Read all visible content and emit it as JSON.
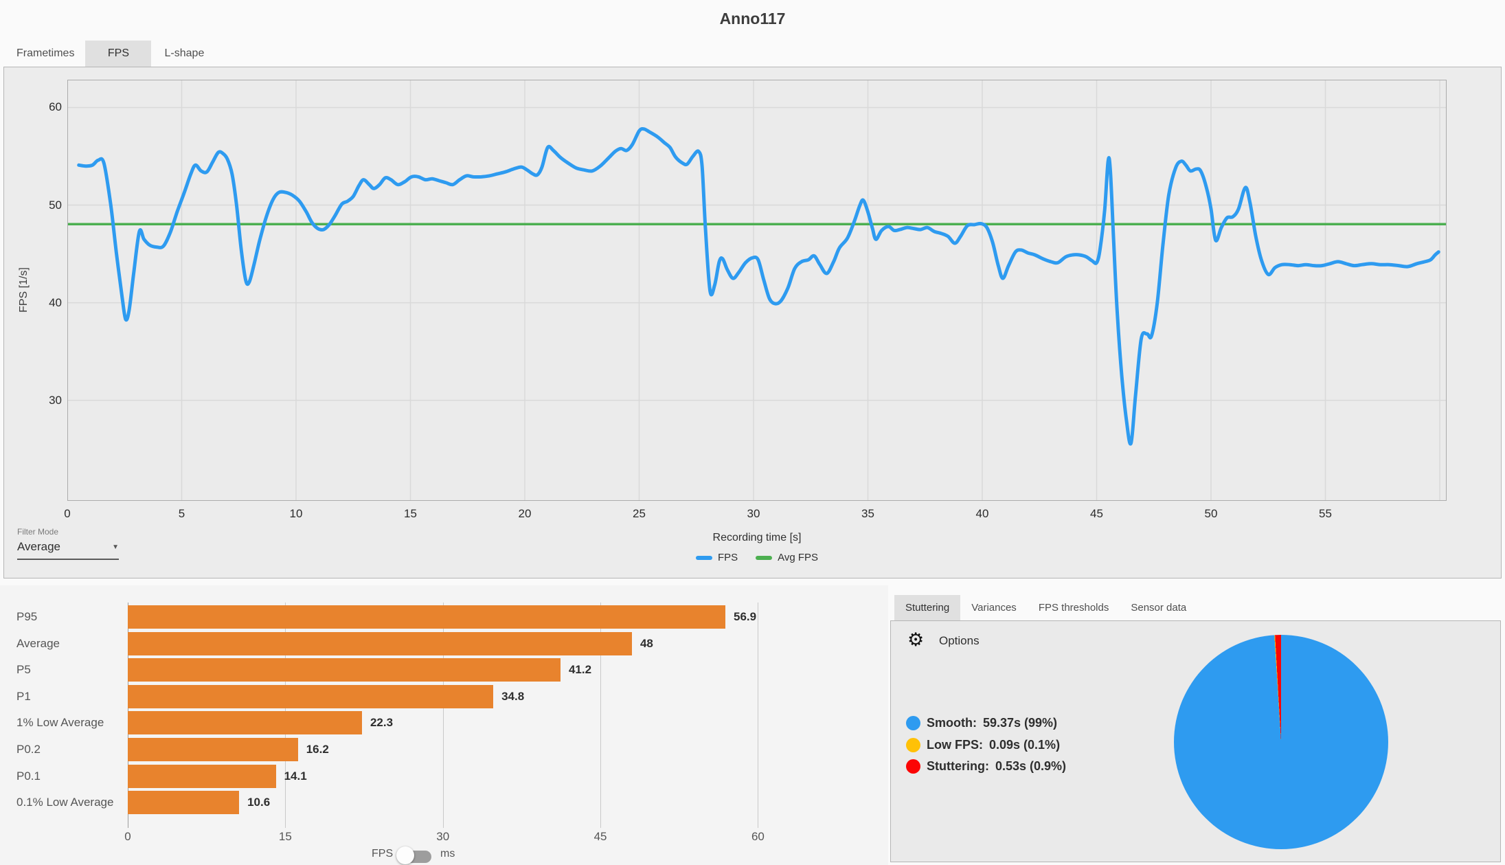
{
  "title": "Anno117",
  "main_tabs": [
    {
      "label": "Frametimes",
      "selected": false
    },
    {
      "label": "FPS",
      "selected": true
    },
    {
      "label": "L-shape",
      "selected": false
    }
  ],
  "filter": {
    "label": "Filter Mode",
    "value": "Average",
    "arrow_icon": "▼"
  },
  "colors": {
    "fps_blue": "#2E9BF0",
    "avg_green": "#4CAF50",
    "bar_orange": "#E8832D",
    "low_fps_yellow": "#FFC107",
    "stutter_red": "#FB0505",
    "tab_selected_bg": "#E0E0E0"
  },
  "chart_data": [
    {
      "type": "line",
      "title": "Anno117",
      "xlabel": "Recording time [s]",
      "ylabel": "FPS [1/s]",
      "xlim": [
        0,
        60.3
      ],
      "ylim": [
        19.7,
        62.85
      ],
      "x_ticks": [
        0,
        5,
        10,
        15,
        20,
        25,
        30,
        35,
        40,
        45,
        50,
        55
      ],
      "grid_x_extra": 60,
      "y_ticks": [
        60,
        50,
        40,
        30
      ],
      "grid": true,
      "legend_position": "bottom",
      "legend": [
        {
          "label": "FPS",
          "color": "#2E9BF0"
        },
        {
          "label": "Avg FPS",
          "color": "#4CAF50"
        }
      ],
      "avg_fps": 48.05,
      "series": [
        {
          "name": "FPS",
          "color": "#2E9BF0",
          "points": [
            [
              0.5,
              54.1
            ],
            [
              0.8,
              54.0
            ],
            [
              1.1,
              54.1
            ],
            [
              1.35,
              54.6
            ],
            [
              1.6,
              54.3
            ],
            [
              1.9,
              50.0
            ],
            [
              2.15,
              45.0
            ],
            [
              2.4,
              40.5
            ],
            [
              2.55,
              38.3
            ],
            [
              2.7,
              39.2
            ],
            [
              2.9,
              43.0
            ],
            [
              3.15,
              47.3
            ],
            [
              3.35,
              46.5
            ],
            [
              3.6,
              45.9
            ],
            [
              3.9,
              45.7
            ],
            [
              4.2,
              45.8
            ],
            [
              4.5,
              47.2
            ],
            [
              4.8,
              49.3
            ],
            [
              5.1,
              51.2
            ],
            [
              5.4,
              53.2
            ],
            [
              5.6,
              54.1
            ],
            [
              5.85,
              53.5
            ],
            [
              6.1,
              53.4
            ],
            [
              6.35,
              54.4
            ],
            [
              6.6,
              55.4
            ],
            [
              6.8,
              55.3
            ],
            [
              7.0,
              54.7
            ],
            [
              7.2,
              53.2
            ],
            [
              7.4,
              50.0
            ],
            [
              7.6,
              45.5
            ],
            [
              7.8,
              42.3
            ],
            [
              7.95,
              42.1
            ],
            [
              8.15,
              43.8
            ],
            [
              8.4,
              46.3
            ],
            [
              8.7,
              48.8
            ],
            [
              9.0,
              50.6
            ],
            [
              9.25,
              51.3
            ],
            [
              9.55,
              51.3
            ],
            [
              9.85,
              51.0
            ],
            [
              10.15,
              50.4
            ],
            [
              10.45,
              49.3
            ],
            [
              10.7,
              48.2
            ],
            [
              10.95,
              47.6
            ],
            [
              11.2,
              47.5
            ],
            [
              11.45,
              48.0
            ],
            [
              11.7,
              48.9
            ],
            [
              12.0,
              50.1
            ],
            [
              12.25,
              50.4
            ],
            [
              12.5,
              50.9
            ],
            [
              12.75,
              52.0
            ],
            [
              12.95,
              52.6
            ],
            [
              13.2,
              52.1
            ],
            [
              13.4,
              51.7
            ],
            [
              13.65,
              52.1
            ],
            [
              13.9,
              52.8
            ],
            [
              14.15,
              52.6
            ],
            [
              14.45,
              52.1
            ],
            [
              14.75,
              52.4
            ],
            [
              15.05,
              52.9
            ],
            [
              15.35,
              52.9
            ],
            [
              15.65,
              52.6
            ],
            [
              15.95,
              52.7
            ],
            [
              16.25,
              52.5
            ],
            [
              16.55,
              52.3
            ],
            [
              16.85,
              52.1
            ],
            [
              17.15,
              52.6
            ],
            [
              17.45,
              53.0
            ],
            [
              17.75,
              52.9
            ],
            [
              18.1,
              52.9
            ],
            [
              18.45,
              53.0
            ],
            [
              18.8,
              53.2
            ],
            [
              19.15,
              53.4
            ],
            [
              19.5,
              53.7
            ],
            [
              19.85,
              53.9
            ],
            [
              20.1,
              53.6
            ],
            [
              20.35,
              53.2
            ],
            [
              20.55,
              53.1
            ],
            [
              20.75,
              53.9
            ],
            [
              21.0,
              55.9
            ],
            [
              21.25,
              55.6
            ],
            [
              21.55,
              54.9
            ],
            [
              21.9,
              54.3
            ],
            [
              22.25,
              53.8
            ],
            [
              22.6,
              53.6
            ],
            [
              22.95,
              53.5
            ],
            [
              23.3,
              54.0
            ],
            [
              23.65,
              54.8
            ],
            [
              23.95,
              55.5
            ],
            [
              24.2,
              55.8
            ],
            [
              24.45,
              55.6
            ],
            [
              24.7,
              56.2
            ],
            [
              25.0,
              57.6
            ],
            [
              25.2,
              57.8
            ],
            [
              25.45,
              57.5
            ],
            [
              25.8,
              57.0
            ],
            [
              26.1,
              56.4
            ],
            [
              26.35,
              55.9
            ],
            [
              26.6,
              54.9
            ],
            [
              26.9,
              54.3
            ],
            [
              27.1,
              54.2
            ],
            [
              27.35,
              55.0
            ],
            [
              27.6,
              55.5
            ],
            [
              27.75,
              54.0
            ],
            [
              27.9,
              47.5
            ],
            [
              28.1,
              41.2
            ],
            [
              28.3,
              41.8
            ],
            [
              28.5,
              44.2
            ],
            [
              28.65,
              44.5
            ],
            [
              28.85,
              43.4
            ],
            [
              29.1,
              42.5
            ],
            [
              29.35,
              43.1
            ],
            [
              29.65,
              44.1
            ],
            [
              29.95,
              44.6
            ],
            [
              30.2,
              44.4
            ],
            [
              30.45,
              42.3
            ],
            [
              30.7,
              40.4
            ],
            [
              30.95,
              39.9
            ],
            [
              31.2,
              40.2
            ],
            [
              31.5,
              41.5
            ],
            [
              31.8,
              43.5
            ],
            [
              32.1,
              44.2
            ],
            [
              32.4,
              44.4
            ],
            [
              32.65,
              44.8
            ],
            [
              32.9,
              43.9
            ],
            [
              33.2,
              43.0
            ],
            [
              33.5,
              44.2
            ],
            [
              33.75,
              45.6
            ],
            [
              34.1,
              46.6
            ],
            [
              34.4,
              48.3
            ],
            [
              34.65,
              50.0
            ],
            [
              34.8,
              50.5
            ],
            [
              35.0,
              49.3
            ],
            [
              35.2,
              47.6
            ],
            [
              35.35,
              46.5
            ],
            [
              35.6,
              47.4
            ],
            [
              35.9,
              47.8
            ],
            [
              36.15,
              47.4
            ],
            [
              36.4,
              47.5
            ],
            [
              36.7,
              47.7
            ],
            [
              37.0,
              47.6
            ],
            [
              37.3,
              47.5
            ],
            [
              37.6,
              47.7
            ],
            [
              37.9,
              47.3
            ],
            [
              38.2,
              47.1
            ],
            [
              38.5,
              46.8
            ],
            [
              38.8,
              46.1
            ],
            [
              39.05,
              46.8
            ],
            [
              39.35,
              47.9
            ],
            [
              39.65,
              48.0
            ],
            [
              39.95,
              48.1
            ],
            [
              40.2,
              47.7
            ],
            [
              40.45,
              46.2
            ],
            [
              40.7,
              43.8
            ],
            [
              40.9,
              42.5
            ],
            [
              41.15,
              43.8
            ],
            [
              41.45,
              45.2
            ],
            [
              41.7,
              45.4
            ],
            [
              42.0,
              45.1
            ],
            [
              42.3,
              44.9
            ],
            [
              42.65,
              44.5
            ],
            [
              43.0,
              44.2
            ],
            [
              43.3,
              44.1
            ],
            [
              43.65,
              44.7
            ],
            [
              43.95,
              44.9
            ],
            [
              44.25,
              44.9
            ],
            [
              44.55,
              44.7
            ],
            [
              44.8,
              44.3
            ],
            [
              45.0,
              44.1
            ],
            [
              45.15,
              45.5
            ],
            [
              45.35,
              49.5
            ],
            [
              45.5,
              54.5
            ],
            [
              45.6,
              53.5
            ],
            [
              45.75,
              46.0
            ],
            [
              45.9,
              39.0
            ],
            [
              46.1,
              32.5
            ],
            [
              46.3,
              28.0
            ],
            [
              46.5,
              25.6
            ],
            [
              46.7,
              30.5
            ],
            [
              46.95,
              36.3
            ],
            [
              47.2,
              36.8
            ],
            [
              47.4,
              36.6
            ],
            [
              47.65,
              40.0
            ],
            [
              47.9,
              46.0
            ],
            [
              48.15,
              51.0
            ],
            [
              48.45,
              53.8
            ],
            [
              48.7,
              54.5
            ],
            [
              48.9,
              54.1
            ],
            [
              49.1,
              53.5
            ],
            [
              49.35,
              53.7
            ],
            [
              49.55,
              53.5
            ],
            [
              49.8,
              51.8
            ],
            [
              50.0,
              49.6
            ],
            [
              50.2,
              46.4
            ],
            [
              50.45,
              47.7
            ],
            [
              50.7,
              48.7
            ],
            [
              50.95,
              48.8
            ],
            [
              51.2,
              49.6
            ],
            [
              51.5,
              51.8
            ],
            [
              51.7,
              50.3
            ],
            [
              51.95,
              46.9
            ],
            [
              52.2,
              44.4
            ],
            [
              52.5,
              42.9
            ],
            [
              52.8,
              43.6
            ],
            [
              53.1,
              43.9
            ],
            [
              53.45,
              43.9
            ],
            [
              53.8,
              43.8
            ],
            [
              54.15,
              43.9
            ],
            [
              54.5,
              43.8
            ],
            [
              54.85,
              43.8
            ],
            [
              55.2,
              44.0
            ],
            [
              55.55,
              44.2
            ],
            [
              55.9,
              44.0
            ],
            [
              56.25,
              43.8
            ],
            [
              56.6,
              43.9
            ],
            [
              57.0,
              44.0
            ],
            [
              57.4,
              43.9
            ],
            [
              57.8,
              43.9
            ],
            [
              58.2,
              43.8
            ],
            [
              58.6,
              43.7
            ],
            [
              59.0,
              44.0
            ],
            [
              59.35,
              44.2
            ],
            [
              59.6,
              44.4
            ],
            [
              59.8,
              44.9
            ],
            [
              59.95,
              45.2
            ]
          ]
        }
      ]
    },
    {
      "type": "bar",
      "orientation": "horizontal",
      "categories": [
        "P95",
        "Average",
        "P5",
        "P1",
        "1% Low Average",
        "P0.2",
        "P0.1",
        "0.1% Low Average"
      ],
      "values": [
        56.9,
        48,
        41.2,
        34.8,
        22.3,
        16.2,
        14.1,
        10.6
      ],
      "value_labels": [
        "56.9",
        "48",
        "41.2",
        "34.8",
        "22.3",
        "16.2",
        "14.1",
        "10.6"
      ],
      "x_ticks": [
        0,
        15,
        30,
        45,
        60
      ],
      "xlim": [
        0,
        63.7
      ],
      "bar_color": "#E8832D",
      "unit_toggle": {
        "left_label": "FPS",
        "right_label": "ms",
        "selected": "FPS"
      }
    },
    {
      "type": "pie",
      "slices": [
        {
          "label": "Smooth",
          "value_text": "59.37s (99%)",
          "percent": 99,
          "color": "#2E9BF0"
        },
        {
          "label": "Low FPS",
          "value_text": "0.09s (0.1%)",
          "percent": 0.1,
          "color": "#FFC107"
        },
        {
          "label": "Stuttering",
          "value_text": "0.53s (0.9%)",
          "percent": 0.9,
          "color": "#FB0505"
        }
      ]
    }
  ],
  "bottom_right": {
    "tabs": [
      {
        "label": "Stuttering",
        "selected": true
      },
      {
        "label": "Variances",
        "selected": false
      },
      {
        "label": "FPS thresholds",
        "selected": false
      },
      {
        "label": "Sensor data",
        "selected": false
      }
    ],
    "options_label": "Options",
    "gear_icon": "⚙"
  }
}
